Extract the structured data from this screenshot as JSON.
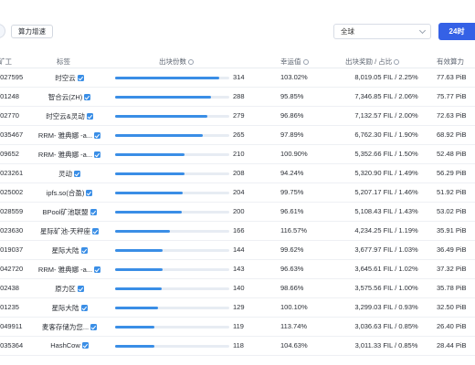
{
  "toolbar": {
    "filter_button": "算力增速",
    "region_select": "全球",
    "time_tab": "24时"
  },
  "table": {
    "headers": {
      "miner": "矿工",
      "tag": "标签",
      "blocks": "出块份数",
      "luck": "幸运值",
      "reward": "出块奖励 / 占比",
      "power": "有效算力"
    },
    "max_blocks": 314,
    "rows": [
      {
        "id": "f027595",
        "tag": "时空云",
        "blocks": 314,
        "blocks_text": "314",
        "luck": "103.02%",
        "reward": "8,019.05 FIL / 2.25%",
        "power": "77.63 PiB"
      },
      {
        "id": "f01248",
        "tag": "智合云(ZH)",
        "blocks": 288,
        "blocks_text": "288",
        "luck": "95.85%",
        "reward": "7,346.85 FIL / 2.06%",
        "power": "75.77 PiB"
      },
      {
        "id": "f02770",
        "tag": "时空云&灵动",
        "blocks": 279,
        "blocks_text": "279",
        "luck": "96.86%",
        "reward": "7,132.57 FIL / 2.00%",
        "power": "72.63 PiB"
      },
      {
        "id": "f035467",
        "tag": "RRM- 雅典娜 -a...",
        "blocks": 265,
        "blocks_text": "265",
        "luck": "97.89%",
        "reward": "6,762.30 FIL / 1.90%",
        "power": "68.92 PiB"
      },
      {
        "id": "f09652",
        "tag": "RRM- 雅典娜 -a...",
        "blocks": 210,
        "blocks_text": "210",
        "luck": "100.90%",
        "reward": "5,352.66 FIL / 1.50%",
        "power": "52.48 PiB"
      },
      {
        "id": "f023261",
        "tag": "灵动",
        "blocks": 208,
        "blocks_text": "208",
        "luck": "94.24%",
        "reward": "5,320.90 FIL / 1.49%",
        "power": "56.29 PiB"
      },
      {
        "id": "f025002",
        "tag": "ipfs.so(合盈)",
        "blocks": 204,
        "blocks_text": "204",
        "luck": "99.75%",
        "reward": "5,207.17 FIL / 1.46%",
        "power": "51.92 PiB"
      },
      {
        "id": "f028559",
        "tag": "BPool矿池联盟",
        "blocks": 200,
        "blocks_text": "200",
        "luck": "96.61%",
        "reward": "5,108.43 FIL / 1.43%",
        "power": "53.02 PiB"
      },
      {
        "id": "f023630",
        "tag": "星际矿池-天秤座",
        "blocks": 166,
        "blocks_text": "166",
        "luck": "116.57%",
        "reward": "4,234.25 FIL / 1.19%",
        "power": "35.91 PiB"
      },
      {
        "id": "f019037",
        "tag": "星际大陆",
        "blocks": 144,
        "blocks_text": "144",
        "luck": "99.62%",
        "reward": "3,677.97 FIL / 1.03%",
        "power": "36.49 PiB"
      },
      {
        "id": "f042720",
        "tag": "RRM- 雅典娜 -a...",
        "blocks": 143,
        "blocks_text": "143",
        "luck": "96.63%",
        "reward": "3,645.61 FIL / 1.02%",
        "power": "37.32 PiB"
      },
      {
        "id": "f02438",
        "tag": "原力区",
        "blocks": 140,
        "blocks_text": "140",
        "luck": "98.66%",
        "reward": "3,575.56 FIL / 1.00%",
        "power": "35.78 PiB"
      },
      {
        "id": "f01235",
        "tag": "星际大陆",
        "blocks": 129,
        "blocks_text": "129",
        "luck": "100.10%",
        "reward": "3,299.03 FIL / 0.93%",
        "power": "32.50 PiB"
      },
      {
        "id": "f049911",
        "tag": "麦客存储为您...",
        "blocks": 119,
        "blocks_text": "119",
        "luck": "113.74%",
        "reward": "3,036.63 FIL / 0.85%",
        "power": "26.40 PiB"
      },
      {
        "id": "f035364",
        "tag": "HashCow",
        "blocks": 118,
        "blocks_text": "118",
        "luck": "104.63%",
        "reward": "3,011.33 FIL / 0.85%",
        "power": "28.44 PiB"
      }
    ]
  }
}
